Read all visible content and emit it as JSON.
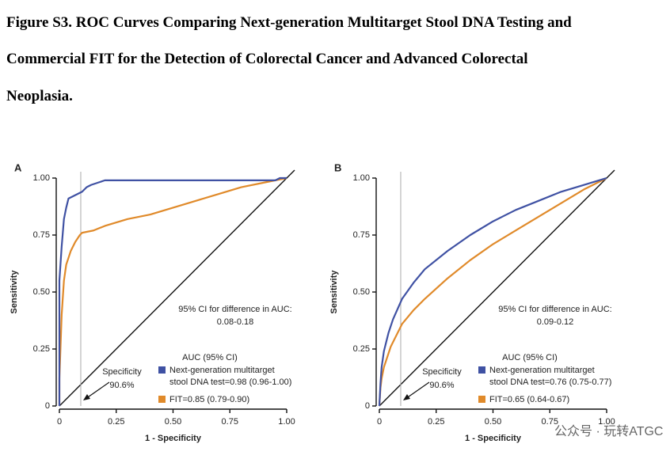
{
  "title_lines": [
    "Figure S3. ROC Curves Comparing Next-generation Multitarget Stool DNA Testing and",
    "Commercial FIT for the Detection of Colorectal Cancer and Advanced Colorectal",
    "Neoplasia."
  ],
  "watermark": "公众号 · 玩转ATGC",
  "chart_data": [
    {
      "type": "line",
      "panel": "A",
      "xlabel": "1 - Specificity",
      "ylabel": "Sensitivity",
      "xlim": [
        0,
        1
      ],
      "ylim": [
        0,
        1
      ],
      "xticks": [
        0,
        0.25,
        {
          "value": 0.5,
          "label": "0.50"
        },
        0.75,
        {
          "value": 1,
          "label": "1.00"
        }
      ],
      "yticks": [
        0,
        0.25,
        {
          "value": 0.5,
          "label": "0.50"
        },
        0.75,
        {
          "value": 1,
          "label": "1.00"
        }
      ],
      "vline": 0.094,
      "vline_label": [
        "Specificity",
        "90.6%"
      ],
      "note": [
        "95% CI for difference in AUC:",
        "0.08-0.18"
      ],
      "legend_title": "AUC (95% CI)",
      "series": [
        {
          "name": "Next-generation multitarget stool DNA test=0.98 (0.96-1.00)",
          "color": "#3f51a3",
          "x": [
            0,
            0,
            0.01,
            0.02,
            0.03,
            0.04,
            0.06,
            0.08,
            0.1,
            0.12,
            0.14,
            0.2,
            0.95,
            0.97,
            1
          ],
          "values": [
            0,
            0.55,
            0.7,
            0.82,
            0.87,
            0.91,
            0.92,
            0.93,
            0.94,
            0.96,
            0.97,
            0.99,
            0.99,
            1,
            1
          ]
        },
        {
          "name": "FIT=0.85 (0.79-0.90)",
          "color": "#e08a2a",
          "x": [
            0,
            0,
            0.01,
            0.02,
            0.03,
            0.05,
            0.07,
            0.09,
            0.1,
            0.15,
            0.2,
            0.3,
            0.4,
            0.5,
            0.6,
            0.7,
            0.8,
            0.9,
            1
          ],
          "values": [
            0,
            0.12,
            0.4,
            0.55,
            0.62,
            0.68,
            0.72,
            0.75,
            0.76,
            0.77,
            0.79,
            0.82,
            0.84,
            0.87,
            0.9,
            0.93,
            0.96,
            0.98,
            1
          ]
        }
      ]
    },
    {
      "type": "line",
      "panel": "B",
      "xlabel": "1 - Specificity",
      "ylabel": "Sensitivity",
      "xlim": [
        0,
        1
      ],
      "ylim": [
        0,
        1
      ],
      "xticks": [
        0,
        0.25,
        {
          "value": 0.5,
          "label": "0.50"
        },
        0.75,
        {
          "value": 1,
          "label": "1.00"
        }
      ],
      "yticks": [
        0,
        0.25,
        {
          "value": 0.5,
          "label": "0.50"
        },
        0.75,
        {
          "value": 1,
          "label": "1.00"
        }
      ],
      "vline": 0.094,
      "vline_label": [
        "Specificity",
        "90.6%"
      ],
      "note": [
        "95% CI for difference in AUC:",
        "0.09-0.12"
      ],
      "legend_title": "AUC (95% CI)",
      "series": [
        {
          "name": "Next-generation multitarget stool DNA test=0.76 (0.75-0.77)",
          "color": "#3f51a3",
          "x": [
            0,
            0.005,
            0.01,
            0.02,
            0.04,
            0.06,
            0.1,
            0.15,
            0.2,
            0.3,
            0.4,
            0.5,
            0.6,
            0.7,
            0.8,
            0.9,
            1
          ],
          "values": [
            0,
            0.1,
            0.17,
            0.24,
            0.32,
            0.38,
            0.47,
            0.54,
            0.6,
            0.68,
            0.75,
            0.81,
            0.86,
            0.9,
            0.94,
            0.97,
            1
          ]
        },
        {
          "name": "FIT=0.65 (0.64-0.67)",
          "color": "#e08a2a",
          "x": [
            0,
            0.005,
            0.01,
            0.02,
            0.05,
            0.1,
            0.15,
            0.2,
            0.3,
            0.4,
            0.5,
            0.6,
            0.7,
            0.8,
            0.9,
            1
          ],
          "values": [
            0,
            0.08,
            0.12,
            0.17,
            0.26,
            0.36,
            0.42,
            0.47,
            0.56,
            0.64,
            0.71,
            0.77,
            0.83,
            0.89,
            0.95,
            1
          ]
        }
      ]
    }
  ]
}
